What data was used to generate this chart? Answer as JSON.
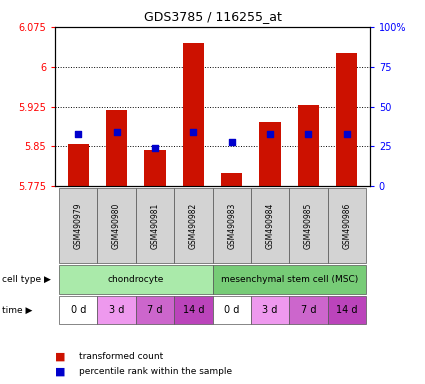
{
  "title": "GDS3785 / 116255_at",
  "samples": [
    "GSM490979",
    "GSM490980",
    "GSM490981",
    "GSM490982",
    "GSM490983",
    "GSM490984",
    "GSM490985",
    "GSM490986"
  ],
  "transformed_counts": [
    5.855,
    5.918,
    5.843,
    6.045,
    5.8,
    5.895,
    5.928,
    6.025
  ],
  "percentile_ranks": [
    33,
    34,
    24,
    34,
    28,
    33,
    33,
    33
  ],
  "ylim_left": [
    5.775,
    6.075
  ],
  "ylim_right": [
    0,
    100
  ],
  "yticks_left": [
    5.775,
    5.85,
    5.925,
    6.0,
    6.075
  ],
  "yticks_right": [
    0,
    25,
    50,
    75,
    100
  ],
  "ytick_labels_left": [
    "5.775",
    "5.85",
    "5.925",
    "6",
    "6.075"
  ],
  "ytick_labels_right": [
    "0",
    "25",
    "50",
    "75",
    "100%"
  ],
  "bar_color": "#cc1100",
  "dot_color": "#0000cc",
  "bar_bottom": 5.775,
  "cell_types": [
    {
      "label": "chondrocyte",
      "start": 0,
      "end": 4,
      "color": "#aaeaaa"
    },
    {
      "label": "mesenchymal stem cell (MSC)",
      "start": 4,
      "end": 8,
      "color": "#77cc77"
    }
  ],
  "times": [
    "0 d",
    "3 d",
    "7 d",
    "14 d",
    "0 d",
    "3 d",
    "7 d",
    "14 d"
  ],
  "time_colors": [
    "#ffffff",
    "#ee99ee",
    "#cc66cc",
    "#bb44bb",
    "#ffffff",
    "#ee99ee",
    "#cc66cc",
    "#bb44bb"
  ],
  "legend_bar_label": "transformed count",
  "legend_dot_label": "percentile rank within the sample",
  "cell_type_label": "cell type",
  "time_label": "time",
  "bar_width": 0.55,
  "fig_width": 4.25,
  "fig_height": 3.84
}
